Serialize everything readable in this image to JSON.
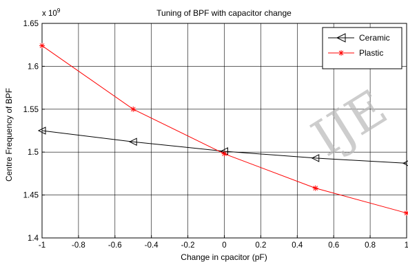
{
  "chart_data": {
    "type": "line",
    "title": "Tuning of BPF with capacitor change",
    "xlabel": "Change in cpacitor (pF)",
    "ylabel": "Centre Frequency of BPF",
    "exponent_label": "x 10",
    "exponent_power": "9",
    "xlim": [
      -1,
      1
    ],
    "ylim": [
      1.4,
      1.65
    ],
    "grid": true,
    "legend_position": "top-right",
    "x_ticks": [
      -1,
      -0.8,
      -0.6,
      -0.4,
      -0.2,
      0,
      0.2,
      0.4,
      0.6,
      0.8,
      1
    ],
    "x_tick_labels": [
      "-1",
      "-0.8",
      "-0.6",
      "-0.4",
      "-0.2",
      "0",
      "0.2",
      "0.4",
      "0.6",
      "0.8",
      "1"
    ],
    "y_ticks": [
      1.4,
      1.45,
      1.5,
      1.55,
      1.6,
      1.65
    ],
    "y_tick_labels": [
      "1.4",
      "1.45",
      "1.5",
      "1.55",
      "1.6",
      "1.65"
    ],
    "series": [
      {
        "name": "Ceramic",
        "color": "#000000",
        "marker": "triangle-left",
        "x": [
          -1,
          -0.5,
          0,
          0.5,
          1
        ],
        "y": [
          1.525,
          1.512,
          1.501,
          1.493,
          1.487
        ]
      },
      {
        "name": "Plastic",
        "color": "#ff0000",
        "marker": "asterisk",
        "x": [
          -1,
          -0.5,
          0,
          0.5,
          1
        ],
        "y": [
          1.624,
          1.55,
          1.498,
          1.458,
          1.429
        ]
      }
    ]
  },
  "watermark": {
    "text": "IJE"
  }
}
